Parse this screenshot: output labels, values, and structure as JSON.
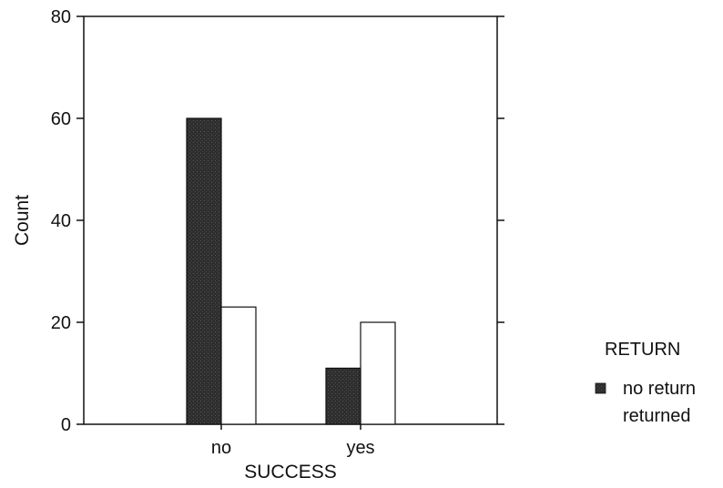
{
  "chart_data": {
    "type": "bar",
    "categories": [
      "no",
      "yes"
    ],
    "series": [
      {
        "name": "no return",
        "values": [
          60,
          11
        ],
        "color": "#2a2a2a"
      },
      {
        "name": "returned",
        "values": [
          23,
          20
        ],
        "color": "#ffffff"
      }
    ],
    "xlabel": "SUCCESS",
    "ylabel": "Count",
    "ylim": [
      0,
      80
    ],
    "yticks": [
      0,
      20,
      40,
      60,
      80
    ],
    "grid": false,
    "legend": {
      "title": "RETURN",
      "placement": "right",
      "entries": [
        "no return",
        "returned"
      ]
    }
  }
}
